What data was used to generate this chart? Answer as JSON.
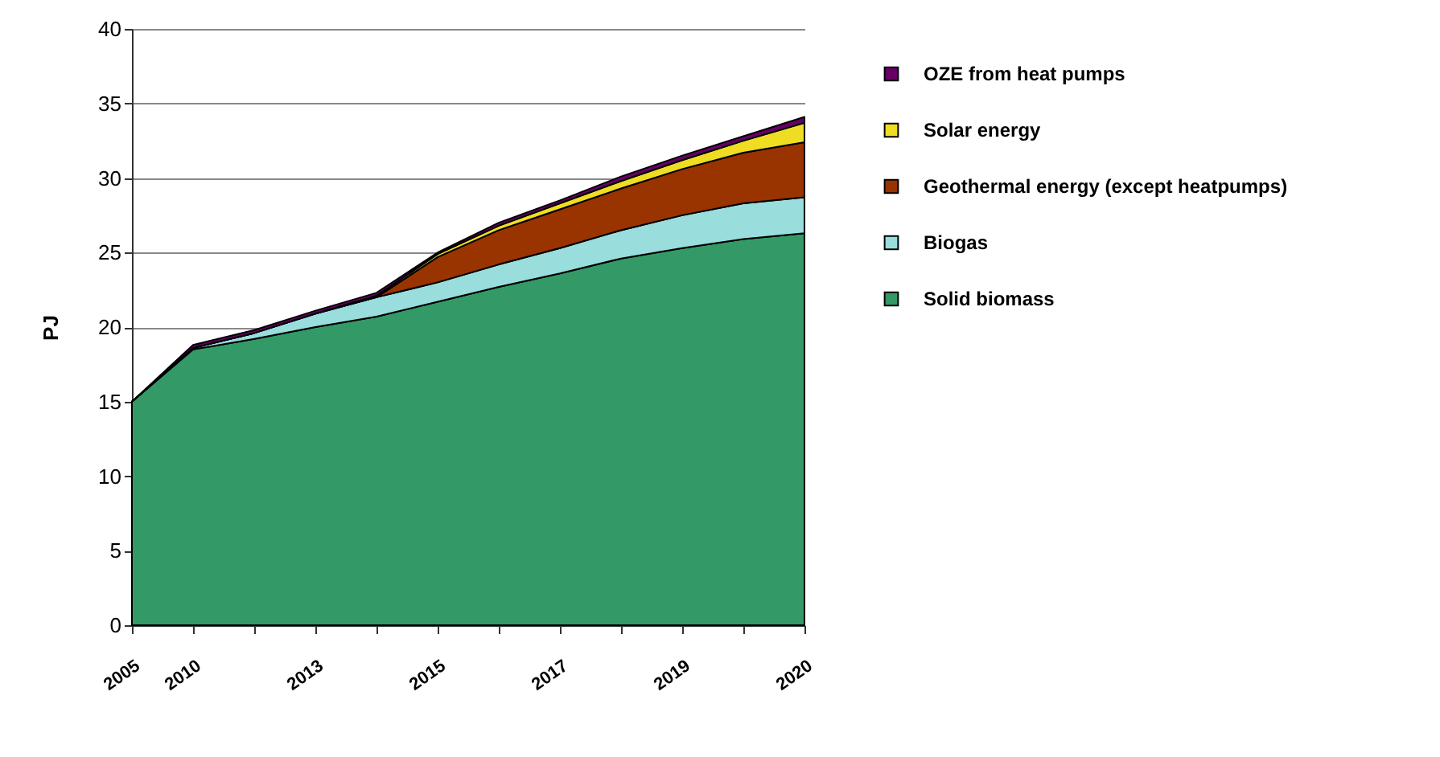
{
  "chart_data": {
    "type": "area",
    "stacked": true,
    "ylabel": "PJ",
    "categories": [
      "2005",
      "2010",
      null,
      "2013",
      null,
      "2015",
      null,
      "2017",
      null,
      "2019",
      null,
      "2020"
    ],
    "ylim": [
      0,
      40
    ],
    "yticks": [
      0,
      5,
      10,
      15,
      20,
      25,
      30,
      35,
      40
    ],
    "grid": "y",
    "legend": "right",
    "series": [
      {
        "name": "Solid biomass",
        "color": "#339966",
        "values": [
          15,
          18.5,
          19.2,
          20,
          20.7,
          21.7,
          22.7,
          23.6,
          24.6,
          25.3,
          25.9,
          26.3
        ]
      },
      {
        "name": "Biogas",
        "color": "#99dddd",
        "values": [
          0,
          0.1,
          0.4,
          0.9,
          1.3,
          1.3,
          1.5,
          1.7,
          1.9,
          2.2,
          2.4,
          2.4
        ]
      },
      {
        "name": "Geothermal energy (except heatpumps)",
        "color": "#993300",
        "values": [
          0,
          0,
          0,
          0,
          0,
          1.7,
          2.3,
          2.6,
          2.8,
          3.1,
          3.4,
          3.7
        ]
      },
      {
        "name": "Solar energy",
        "color": "#eedd22",
        "values": [
          0,
          0,
          0,
          0,
          0.1,
          0.2,
          0.3,
          0.4,
          0.5,
          0.6,
          0.8,
          1.3
        ]
      },
      {
        "name": "OZE from heat pumps",
        "color": "#660066",
        "values": [
          0,
          0.2,
          0.2,
          0.2,
          0.2,
          0.1,
          0.2,
          0.2,
          0.3,
          0.3,
          0.3,
          0.4
        ]
      }
    ]
  }
}
